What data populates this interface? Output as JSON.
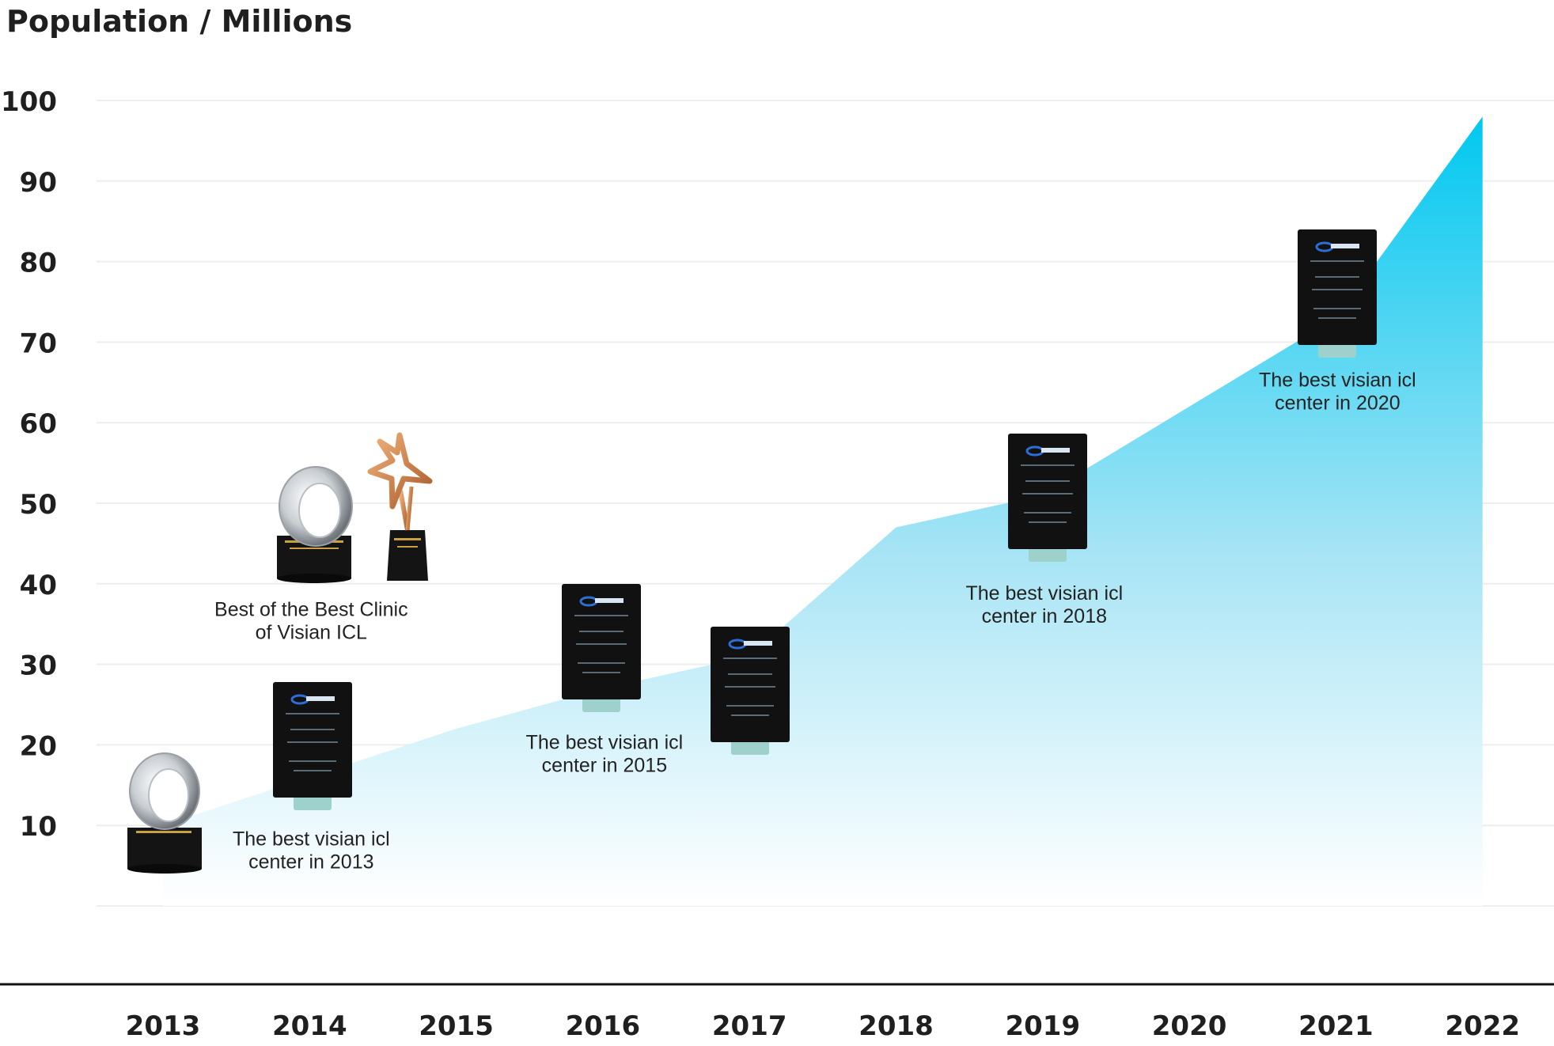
{
  "chart_data": {
    "type": "area",
    "title": "",
    "ylabel": "Population / Millions",
    "xlabel": "",
    "categories": [
      "2013",
      "2014",
      "2015",
      "2016",
      "2017",
      "2018",
      "2019",
      "2020",
      "2021",
      "2022"
    ],
    "x": [
      2013,
      2014,
      2015,
      2016,
      2017,
      2018,
      2019,
      2020,
      2021,
      2022
    ],
    "values": [
      10,
      16,
      22,
      27,
      31,
      47,
      51,
      62,
      73,
      98
    ],
    "y_ticks": [
      10,
      20,
      30,
      40,
      50,
      60,
      70,
      80,
      90,
      100
    ],
    "ylim": [
      0,
      100
    ],
    "grid": true,
    "fill_colors": {
      "top": "#00c8f0",
      "bottom": "#ffffff"
    },
    "annotations": [
      {
        "id": "best-2013",
        "lines": [
          "The best visian icl",
          "center in 2013"
        ],
        "year": 2014,
        "value": 7.5
      },
      {
        "id": "best-of-best",
        "lines": [
          "Best of the Best Clinic",
          "of Visian ICL"
        ],
        "year": 2014,
        "value": 36
      },
      {
        "id": "best-2015",
        "lines": [
          "The best visian icl",
          "center in 2015"
        ],
        "year": 2016,
        "value": 19.5
      },
      {
        "id": "best-2018",
        "lines": [
          "The best visian icl",
          "center in 2018"
        ],
        "year": 2019,
        "value": 38
      },
      {
        "id": "best-2020",
        "lines": [
          "The best visian icl",
          "center in 2020"
        ],
        "year": 2021,
        "value": 64.5
      }
    ]
  }
}
